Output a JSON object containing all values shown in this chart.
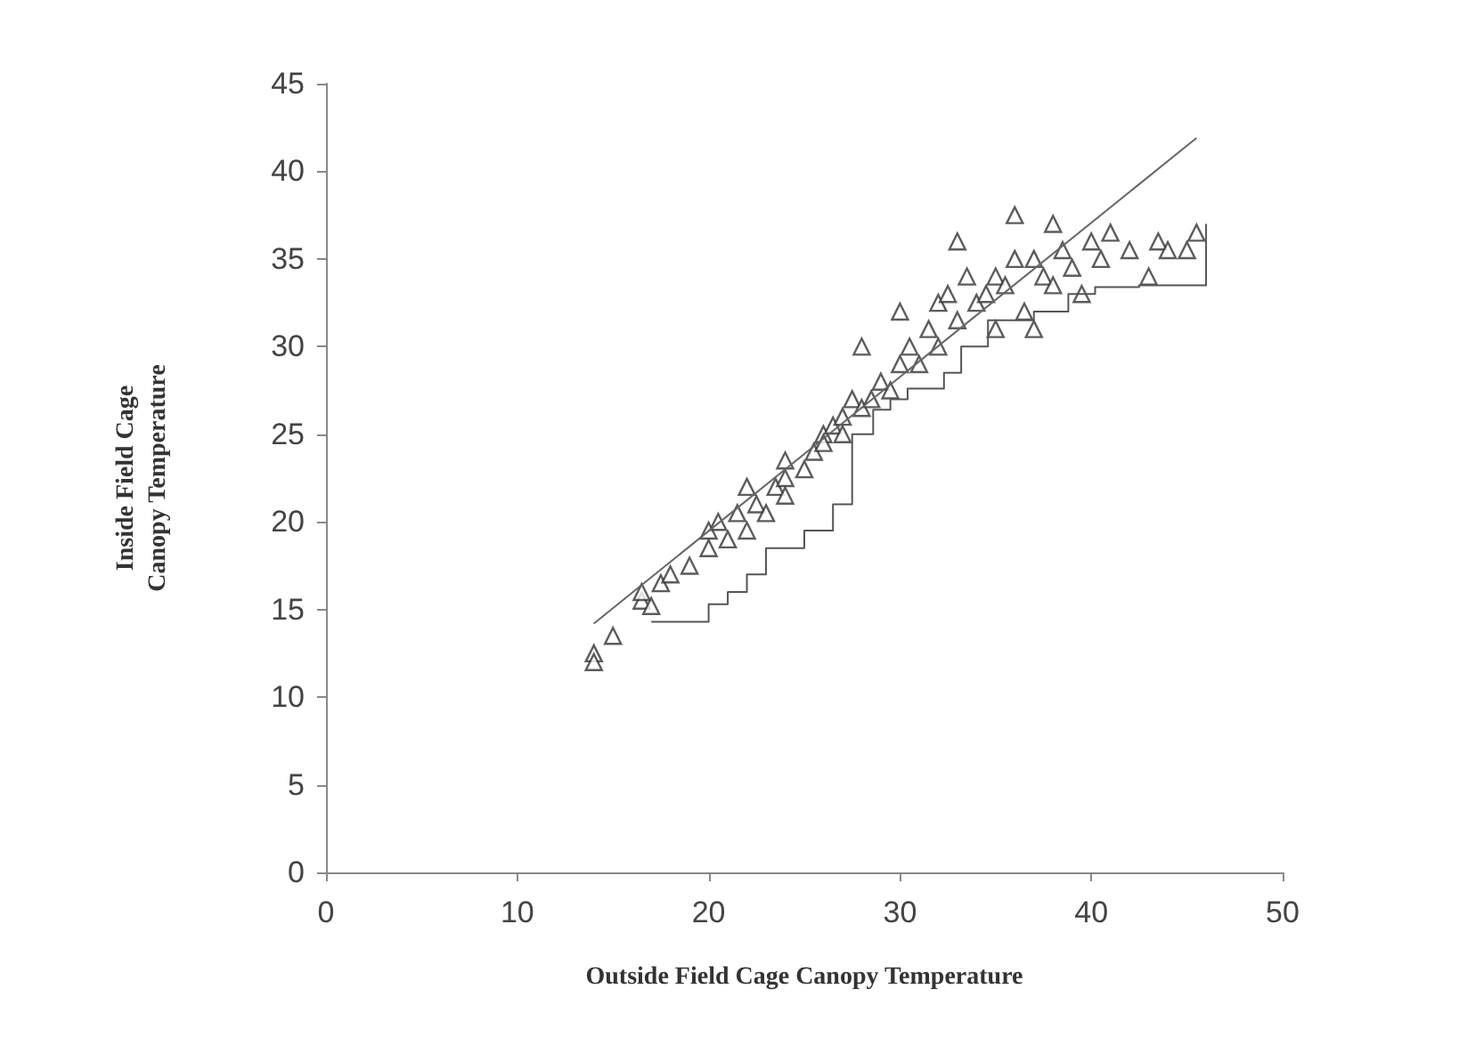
{
  "chart_data": {
    "type": "scatter",
    "xlabel": "Outside Field Cage Canopy Temperature",
    "ylabel": "Inside Field Cage\nCanopy Temperature",
    "xlim": [
      0,
      50
    ],
    "xticks": [
      0,
      10,
      20,
      30,
      40,
      50
    ],
    "ylim": [
      0,
      45
    ],
    "yticks": [
      0,
      5,
      10,
      15,
      20,
      25,
      30,
      35,
      40,
      45
    ],
    "grid": false,
    "series": [
      {
        "marker": "triangle",
        "color": "#333333",
        "x": [
          14,
          14,
          15,
          16.5,
          16.5,
          17,
          17.5,
          18,
          19,
          20,
          20,
          20.5,
          21,
          21.5,
          22,
          22.5,
          23,
          23.5,
          24,
          24,
          25,
          25.5,
          26,
          26,
          26.5,
          27,
          27,
          27.5,
          28,
          28.5,
          29,
          29.5,
          30,
          30.5,
          31,
          31.5,
          32,
          32,
          32.5,
          33,
          33.5,
          34,
          34.5,
          35,
          35,
          35.5,
          36,
          36.5,
          37,
          37,
          37.5,
          38,
          38.5,
          39,
          39.5,
          40,
          40.5,
          41,
          42,
          43,
          43.5,
          44,
          45,
          45.5,
          38,
          36,
          33,
          30,
          28,
          24,
          22
        ],
        "values": [
          12.5,
          12,
          13.5,
          15.5,
          16,
          15.2,
          16.5,
          17,
          17.5,
          18.5,
          19.5,
          20,
          19,
          20.5,
          19.5,
          21,
          20.5,
          22,
          22.5,
          21.5,
          23,
          24,
          25,
          24.5,
          25.5,
          26,
          25,
          27,
          26.5,
          27,
          28,
          27.5,
          29,
          30,
          29,
          31,
          30,
          32.5,
          33,
          31.5,
          34,
          32.5,
          33,
          31,
          34,
          33.5,
          35,
          32,
          31,
          35,
          34,
          33.5,
          35.5,
          34.5,
          33,
          36,
          35,
          36.5,
          35.5,
          34,
          36,
          35.5,
          35.5,
          36.5,
          37,
          37.5,
          36,
          32,
          30,
          23.5,
          22
        ]
      },
      {
        "type": "line",
        "marker": "none",
        "color": "#666666",
        "x": [
          14,
          45.5
        ],
        "values": [
          14.2,
          41.9
        ]
      },
      {
        "type": "step",
        "marker": "none",
        "color": "#555555",
        "x": [
          17,
          18.5,
          20,
          21,
          22,
          23,
          25,
          26.5,
          27.5,
          28.6,
          29.5,
          30.4,
          32.3,
          33.2,
          34.6,
          37,
          38.8,
          40.2,
          42.5,
          46,
          46
        ],
        "values": [
          14.3,
          14.3,
          15.3,
          16,
          17,
          18.5,
          19.5,
          21,
          25,
          26.4,
          27,
          27.6,
          28.5,
          30,
          31.5,
          32,
          33,
          33.4,
          33.5,
          33.5,
          37
        ]
      }
    ]
  }
}
